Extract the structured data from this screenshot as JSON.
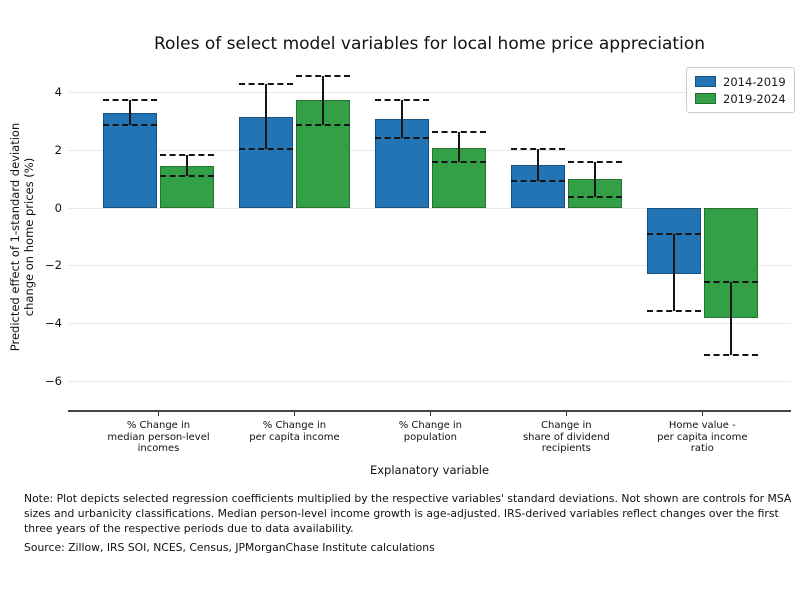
{
  "chart_data": {
    "type": "bar",
    "title": "Roles of select model variables for local home price appreciation",
    "xlabel": "Explanatory variable",
    "ylabel": "Predicted effect of 1-standard deviation\nchange on home prices (%)",
    "categories": [
      "% Change in\nmedian person-level\nincomes",
      "% Change in\nper capita income",
      "% Change in\npopulation",
      "Change in\nshare of dividend\nrecipients",
      "Home value -\nper capita income\nratio"
    ],
    "series": [
      {
        "name": "2014-2019",
        "color": "#2274b5",
        "values": [
          3.3,
          3.15,
          3.1,
          1.5,
          -2.3
        ],
        "ci_low": [
          2.9,
          2.05,
          2.45,
          0.95,
          -3.55
        ],
        "ci_high": [
          3.75,
          4.3,
          3.75,
          2.05,
          -0.9
        ]
      },
      {
        "name": "2019-2024",
        "color": "#33a047",
        "values": [
          1.45,
          3.75,
          2.1,
          1.0,
          -3.8
        ],
        "ci_low": [
          1.1,
          2.9,
          1.6,
          0.4,
          -5.1
        ],
        "ci_high": [
          1.85,
          4.6,
          2.65,
          1.6,
          -2.55
        ]
      }
    ],
    "ylim": [
      -7,
      5
    ],
    "yticks": [
      4,
      2,
      0,
      -2,
      -4,
      -6
    ],
    "grid": true,
    "legend_position": "upper right",
    "error_bars": "vertical whisker with dashed caps at confidence bounds"
  },
  "notes": {
    "note": "Note: Plot depicts selected regression coefficients multiplied by the respective variables' standard deviations. Not shown are controls for MSA sizes and urbanicity classifications. Median person-level income growth is age-adjusted. IRS-derived variables reflect changes over the first three years of the respective periods due to data availability.",
    "source": "Source: Zillow, IRS SOI, NCES, Census, JPMorganChase Institute calculations"
  }
}
